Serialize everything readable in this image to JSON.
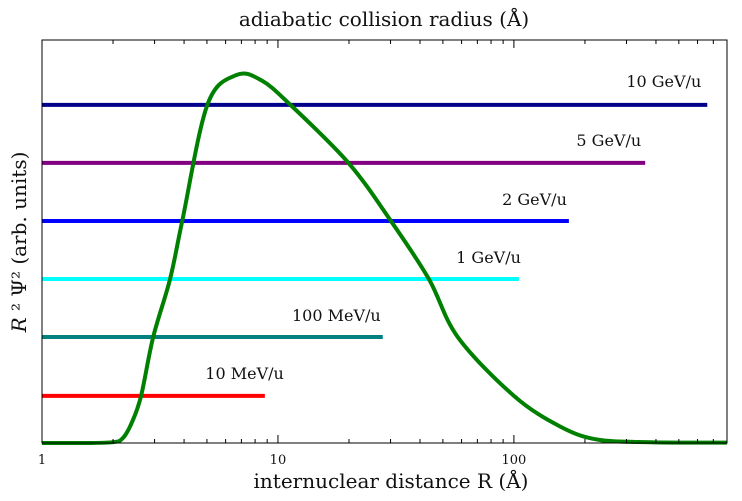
{
  "chart_data": {
    "type": "line",
    "title": "adiabatic collision radius (Å)",
    "xlabel": "internuclear distance  R (Å)",
    "ylabel_parts": {
      "symbol": "R",
      "rest": " ² Ψ² (arb. units)"
    },
    "x_scale": "log",
    "xlim": [
      1,
      800
    ],
    "ylim": [
      0,
      1
    ],
    "x_tick_labels": [
      {
        "value": 1,
        "label": "1"
      },
      {
        "value": 10,
        "label": "10"
      },
      {
        "value": 100,
        "label": "100"
      }
    ],
    "grid": false,
    "curve": {
      "color": "#008000",
      "x": [
        1,
        1.5,
        2.0,
        2.2,
        2.4,
        2.63,
        2.96,
        3.49,
        3.93,
        5.02,
        6.66,
        8.5,
        11.3,
        19.9,
        30.1,
        43.6,
        57.8,
        100,
        158,
        228,
        381,
        623,
        800
      ],
      "y": [
        0,
        0,
        0.002,
        0.012,
        0.05,
        0.117,
        0.263,
        0.407,
        0.551,
        0.839,
        0.913,
        0.9,
        0.839,
        0.695,
        0.551,
        0.407,
        0.263,
        0.117,
        0.04,
        0.008,
        0.002,
        0.001,
        0.001
      ]
    },
    "series": [
      {
        "name": "10 GeV/u",
        "color": "#00008b",
        "y": 0.839,
        "x": [
          1,
          660
        ]
      },
      {
        "name": "5 GeV/u",
        "color": "#800080",
        "y": 0.695,
        "x": [
          1,
          360
        ]
      },
      {
        "name": "2 GeV/u",
        "color": "#0000ff",
        "y": 0.551,
        "x": [
          1,
          171
        ]
      },
      {
        "name": "1 GeV/u",
        "color": "#00ffff",
        "y": 0.407,
        "x": [
          1,
          105
        ]
      },
      {
        "name": "100 MeV/u",
        "color": "#008080",
        "y": 0.263,
        "x": [
          1,
          27.8
        ]
      },
      {
        "name": "10 MeV/u",
        "color": "#ff0000",
        "y": 0.117,
        "x": [
          1,
          8.8
        ]
      }
    ]
  }
}
